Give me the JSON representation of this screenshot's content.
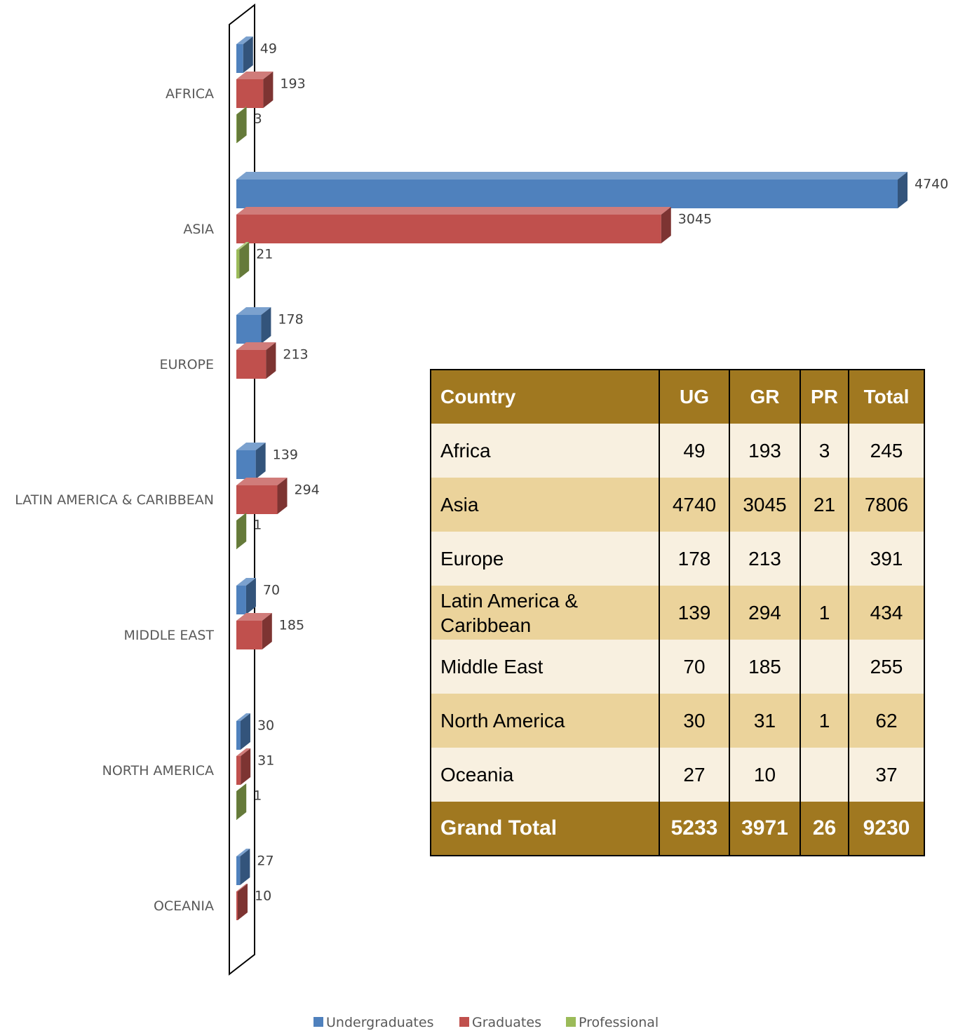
{
  "chart_data": {
    "type": "bar",
    "orientation": "horizontal",
    "style": "3d",
    "categories": [
      "AFRICA",
      "ASIA",
      "EUROPE",
      "LATIN AMERICA & CARIBBEAN",
      "MIDDLE EAST",
      "NORTH AMERICA",
      "OCEANIA"
    ],
    "series": [
      {
        "name": "Undergraduates",
        "values": [
          49,
          4740,
          178,
          139,
          70,
          30,
          27
        ],
        "color": "#4f81bd"
      },
      {
        "name": "Graduates",
        "values": [
          193,
          3045,
          213,
          294,
          185,
          31,
          10
        ],
        "color": "#c0504d"
      },
      {
        "name": "Professional",
        "values": [
          3,
          21,
          null,
          1,
          null,
          1,
          null
        ],
        "color": "#9bbb59"
      }
    ],
    "title": "",
    "xlabel": "",
    "ylabel": "",
    "grid": false,
    "data_labels": true,
    "legend_position": "bottom"
  },
  "table": {
    "headers": [
      "Country",
      "UG",
      "GR",
      "PR",
      "Total"
    ],
    "rows": [
      {
        "country": "Africa",
        "ug": "49",
        "gr": "193",
        "pr": "3",
        "total": "245"
      },
      {
        "country": "Asia",
        "ug": "4740",
        "gr": "3045",
        "pr": "21",
        "total": "7806"
      },
      {
        "country": "Europe",
        "ug": "178",
        "gr": "213",
        "pr": "",
        "total": "391"
      },
      {
        "country": "Latin America & Caribbean",
        "ug": "139",
        "gr": "294",
        "pr": "1",
        "total": "434"
      },
      {
        "country": "Middle East",
        "ug": "70",
        "gr": "185",
        "pr": "",
        "total": "255"
      },
      {
        "country": "North America",
        "ug": "30",
        "gr": "31",
        "pr": "1",
        "total": "62"
      },
      {
        "country": "Oceania",
        "ug": "27",
        "gr": "10",
        "pr": "",
        "total": "37"
      }
    ],
    "footer": {
      "country": "Grand Total",
      "ug": "5233",
      "gr": "3971",
      "pr": "26",
      "total": "9230"
    },
    "colors": {
      "header": "#a07820",
      "row_light": "#f8f0e0",
      "row_dark": "#ebd39b"
    }
  }
}
